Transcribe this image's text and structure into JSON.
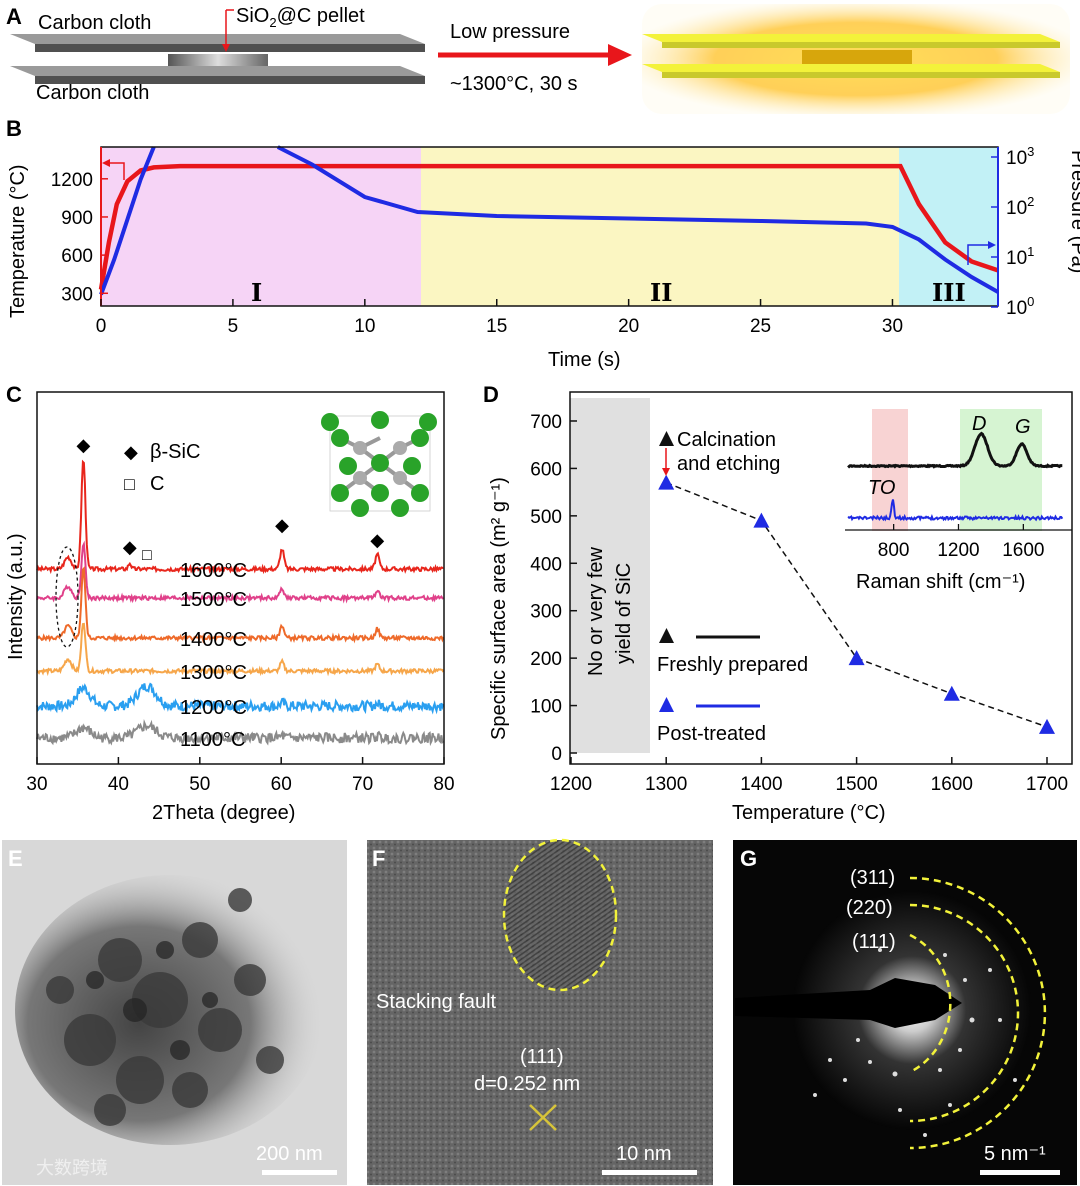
{
  "panel_labels": [
    "A",
    "B",
    "C",
    "D",
    "E",
    "F",
    "G"
  ],
  "panelA": {
    "top_cloth": "Carbon cloth",
    "bottom_cloth": "Carbon cloth",
    "pellet_pre": "SiO",
    "pellet_sub": "2",
    "pellet_post": "@C pellet",
    "arrow_top": "Low pressure",
    "arrow_bottom": "~1300°C, 30 s"
  },
  "chart_data": [
    {
      "panel": "B",
      "type": "line",
      "xlabel": "Time (s)",
      "ylabel": "Temperature (°C)",
      "y2label": "Pressure (Pa)",
      "xlim": [
        0,
        34
      ],
      "ylim": [
        200,
        1450
      ],
      "y2_scale": "log",
      "y2_ticks": [
        "10^0",
        "10^1",
        "10^2",
        "10^3"
      ],
      "xticks": [
        "0",
        "5",
        "10",
        "15",
        "20",
        "25",
        "30"
      ],
      "yticks": [
        "300",
        "600",
        "900",
        "1200"
      ],
      "stages": [
        "I",
        "II",
        "III"
      ],
      "stage_bounds_s": [
        [
          0,
          12.2
        ],
        [
          12.2,
          30.3
        ],
        [
          30.3,
          34
        ]
      ],
      "stage_colors": [
        "#f6d4f6",
        "#fbf6c2",
        "#c2f1f6"
      ],
      "series": [
        {
          "name": "Temperature",
          "color": "#e8161b",
          "x": [
            0,
            0.3,
            0.6,
            1.0,
            1.5,
            2.0,
            3.0,
            6.0,
            12.0,
            30.3,
            31.0,
            32.0,
            33.0,
            34.0
          ],
          "y": [
            330,
            700,
            1000,
            1180,
            1265,
            1290,
            1300,
            1300,
            1300,
            1300,
            1000,
            700,
            550,
            480
          ]
        },
        {
          "name": "Pressure",
          "color": "#1f2be3",
          "x": [
            0,
            0.5,
            1.0,
            1.5,
            2.0,
            6.7,
            8.0,
            10.0,
            12.0,
            15.0,
            20.0,
            25.0,
            29.0,
            30.0,
            31.0,
            32.0,
            33.0,
            34.0
          ],
          "y_log10": [
            0.25,
            0.95,
            1.75,
            2.55,
            3.3,
            3.3,
            2.85,
            2.2,
            1.9,
            1.82,
            1.77,
            1.72,
            1.67,
            1.6,
            1.35,
            0.95,
            0.6,
            0.3
          ]
        }
      ]
    },
    {
      "panel": "C",
      "type": "line",
      "xlabel": "2Theta (degree)",
      "ylabel": "Intensity (a.u.)",
      "xlim": [
        30,
        80
      ],
      "xticks": [
        "30",
        "40",
        "50",
        "60",
        "70",
        "80"
      ],
      "legend": [
        {
          "symbol": "◆",
          "name": "β-SiC"
        },
        {
          "symbol": "□",
          "name": "C"
        }
      ],
      "series": [
        {
          "name": "1600°C",
          "color": "#e8261c"
        },
        {
          "name": "1500°C",
          "color": "#e0418a"
        },
        {
          "name": "1400°C",
          "color": "#ee6a2a"
        },
        {
          "name": "1300°C",
          "color": "#f6a64a"
        },
        {
          "name": "1200°C",
          "color": "#2a9ff0"
        },
        {
          "name": "1100°C",
          "color": "#8a8a8a"
        }
      ],
      "peaks_sic_deg": [
        35.7,
        41.4,
        60.1,
        71.8
      ],
      "peak_c_deg": 43.5
    },
    {
      "panel": "D",
      "type": "scatter",
      "xlabel": "Temperature (°C)",
      "ylabel": "Specific surface area (m² g⁻¹)",
      "xlim": [
        1200,
        1700
      ],
      "ylim": [
        0,
        750
      ],
      "xticks": [
        "1200",
        "1300",
        "1400",
        "1500",
        "1600",
        "1700"
      ],
      "yticks": [
        "0",
        "100",
        "200",
        "300",
        "400",
        "500",
        "600",
        "700"
      ],
      "shaded_region_text_1": "No or very few",
      "shaded_region_text_2": "yield of SiC",
      "annotation_1": "Calcination",
      "annotation_2": "and etching",
      "legend": [
        "Freshly prepared",
        "Post-treated"
      ],
      "series": [
        {
          "name": "Post-treated",
          "color": "#1f2be3",
          "x": [
            1300,
            1400,
            1500,
            1600,
            1700
          ],
          "y": [
            570,
            490,
            200,
            125,
            55
          ]
        }
      ],
      "inset": {
        "xlabel": "Raman shift (cm⁻¹)",
        "xticks": [
          "800",
          "1200",
          "1600"
        ],
        "peaks": [
          "TO",
          "D",
          "G"
        ],
        "series": [
          "Freshly prepared",
          "Post-treated"
        ]
      }
    }
  ],
  "panelE": {
    "scale": "200 nm",
    "watermark": "大数跨境"
  },
  "panelF": {
    "annotation": "Stacking fault",
    "plane": "(111)",
    "d": "d=0.252 nm",
    "scale": "10 nm"
  },
  "panelG": {
    "rings": [
      "(311)",
      "(220)",
      "(111)"
    ],
    "scale": "5 nm⁻¹"
  },
  "colors": {
    "red": "#e8161b",
    "blue": "#1f2be3"
  }
}
